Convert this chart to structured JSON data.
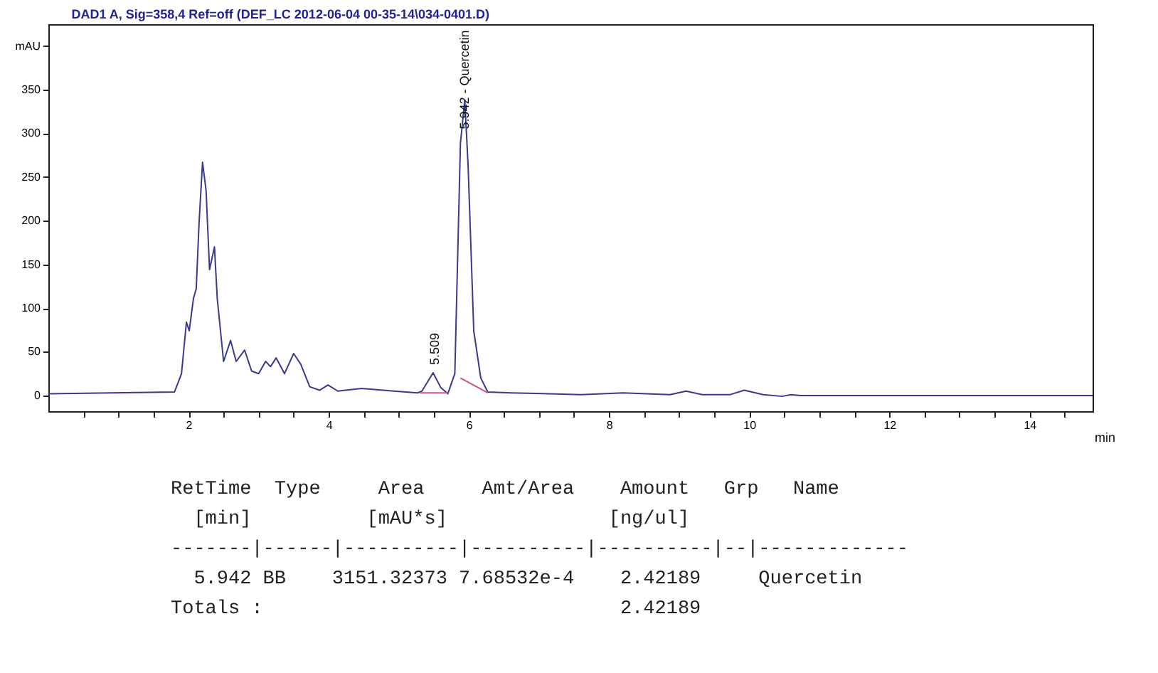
{
  "chart_data": {
    "type": "line",
    "title": "DAD1 A, Sig=358,4 Ref=off (DEF_LC 2012-06-04 00-35-14\\034-0401.D)",
    "xlabel": "min",
    "grid": false,
    "marker": "none",
    "line_style": "solid",
    "xlim": [
      0,
      14.9
    ],
    "ylim": [
      -18,
      425
    ],
    "xticks": [
      {
        "value": 0.5,
        "label": null
      },
      {
        "value": 1,
        "label": null
      },
      {
        "value": 1.5,
        "label": null
      },
      2,
      {
        "value": 2.5,
        "label": null
      },
      {
        "value": 3,
        "label": null
      },
      {
        "value": 3.5,
        "label": null
      },
      4,
      {
        "value": 4.5,
        "label": null
      },
      {
        "value": 5,
        "label": null
      },
      {
        "value": 5.5,
        "label": null
      },
      6,
      {
        "value": 6.5,
        "label": null
      },
      {
        "value": 7,
        "label": null
      },
      {
        "value": 7.5,
        "label": null
      },
      8,
      {
        "value": 8.5,
        "label": null
      },
      {
        "value": 9,
        "label": null
      },
      {
        "value": 9.5,
        "label": null
      },
      10,
      {
        "value": 10.5,
        "label": null
      },
      {
        "value": 11,
        "label": null
      },
      {
        "value": 11.5,
        "label": null
      },
      12,
      {
        "value": 12.5,
        "label": null
      },
      {
        "value": 13,
        "label": null
      },
      {
        "value": 13.5,
        "label": null
      },
      14,
      {
        "value": 14.5,
        "label": null
      }
    ],
    "yticks": [
      0,
      50,
      100,
      150,
      200,
      250,
      300,
      350,
      {
        "value": 400,
        "label": "mAU"
      }
    ],
    "series": [
      {
        "color": "#3a3a8c",
        "x": [
          0,
          1.8,
          1.9,
          1.97,
          2.01,
          2.07,
          2.11,
          2.15,
          2.2,
          2.25,
          2.3,
          2.37,
          2.41,
          2.5,
          2.6,
          2.68,
          2.8,
          2.9,
          3.0,
          3.1,
          3.17,
          3.25,
          3.37,
          3.5,
          3.6,
          3.73,
          3.87,
          3.99,
          4.13,
          4.47,
          4.93,
          5.27,
          5.33,
          5.49,
          5.6,
          5.7,
          5.8,
          5.88,
          5.942,
          5.99,
          6.07,
          6.17,
          6.27,
          6.6,
          7.6,
          8.2,
          8.87,
          9.1,
          9.33,
          9.73,
          9.93,
          10.2,
          10.47,
          10.6,
          10.73,
          14.9
        ],
        "values": [
          2,
          4,
          25,
          84,
          74,
          111,
          122,
          197,
          267,
          235,
          144,
          170,
          111,
          39,
          63,
          39,
          52,
          28,
          25,
          39,
          33,
          43,
          25,
          48,
          36,
          10,
          6,
          12,
          5,
          8,
          5,
          3,
          5,
          26,
          9,
          2,
          25,
          289,
          338,
          262,
          74,
          20,
          4,
          3,
          1,
          3,
          1,
          5,
          1,
          1,
          6,
          1,
          -1,
          1,
          0,
          0
        ]
      },
      {
        "color": "#d0508a",
        "x": [
          5.3,
          5.7,
          5.8,
          5.88,
          6.27
        ],
        "values": [
          3,
          3,
          null,
          20,
          3
        ]
      }
    ],
    "annotations": [
      {
        "text": "5.509",
        "x": 5.509,
        "y": 30
      },
      {
        "text": "5.942 - Quercetin",
        "x": 5.942,
        "y": 300
      },
      "RetTime  Type     Area     Amt/Area    Amount   Grp   Name",
      "  [min]          [mAU*s]              [ng/ul]",
      "-------|------|----------|----------|----------|--|-------------",
      "  5.942 BB    3151.32373 7.68532e-4    2.42189     Quercetin",
      "Totals :                               2.42189"
    ]
  }
}
